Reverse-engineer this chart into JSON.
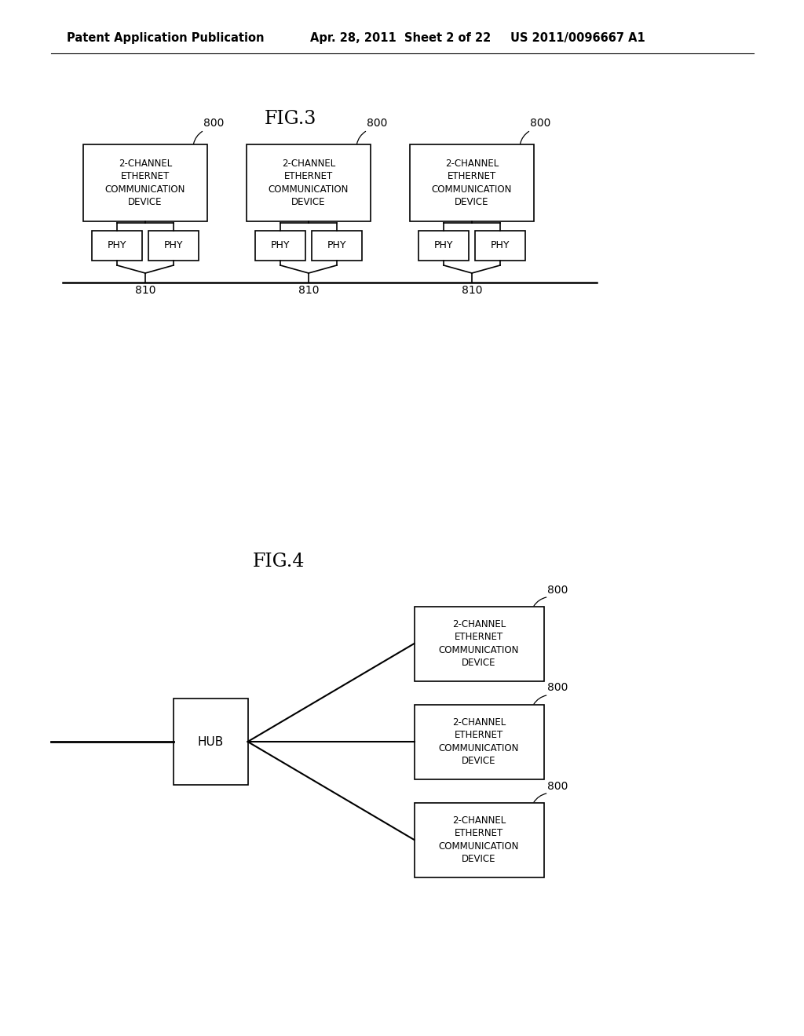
{
  "bg_color": "#ffffff",
  "header_left": "Patent Application Publication",
  "header_mid": "Apr. 28, 2011  Sheet 2 of 22",
  "header_right": "US 2011/0096667 A1",
  "fig3_title": "FIG.3",
  "fig4_title": "FIG.4",
  "device_label": "2-CHANNEL\nETHERNET\nCOMMUNICATION\nDEVICE",
  "phy_label": "PHY",
  "hub_label": "HUB",
  "ref_800": "800",
  "ref_810": "810",
  "line_color": "#000000",
  "box_facecolor": "#ffffff",
  "box_edgecolor": "#000000",
  "text_color": "#000000",
  "font_size_header": 10.5,
  "font_size_title": 17,
  "font_size_device": 8.5,
  "font_size_phy": 9,
  "font_size_hub": 11,
  "font_size_ref": 10
}
